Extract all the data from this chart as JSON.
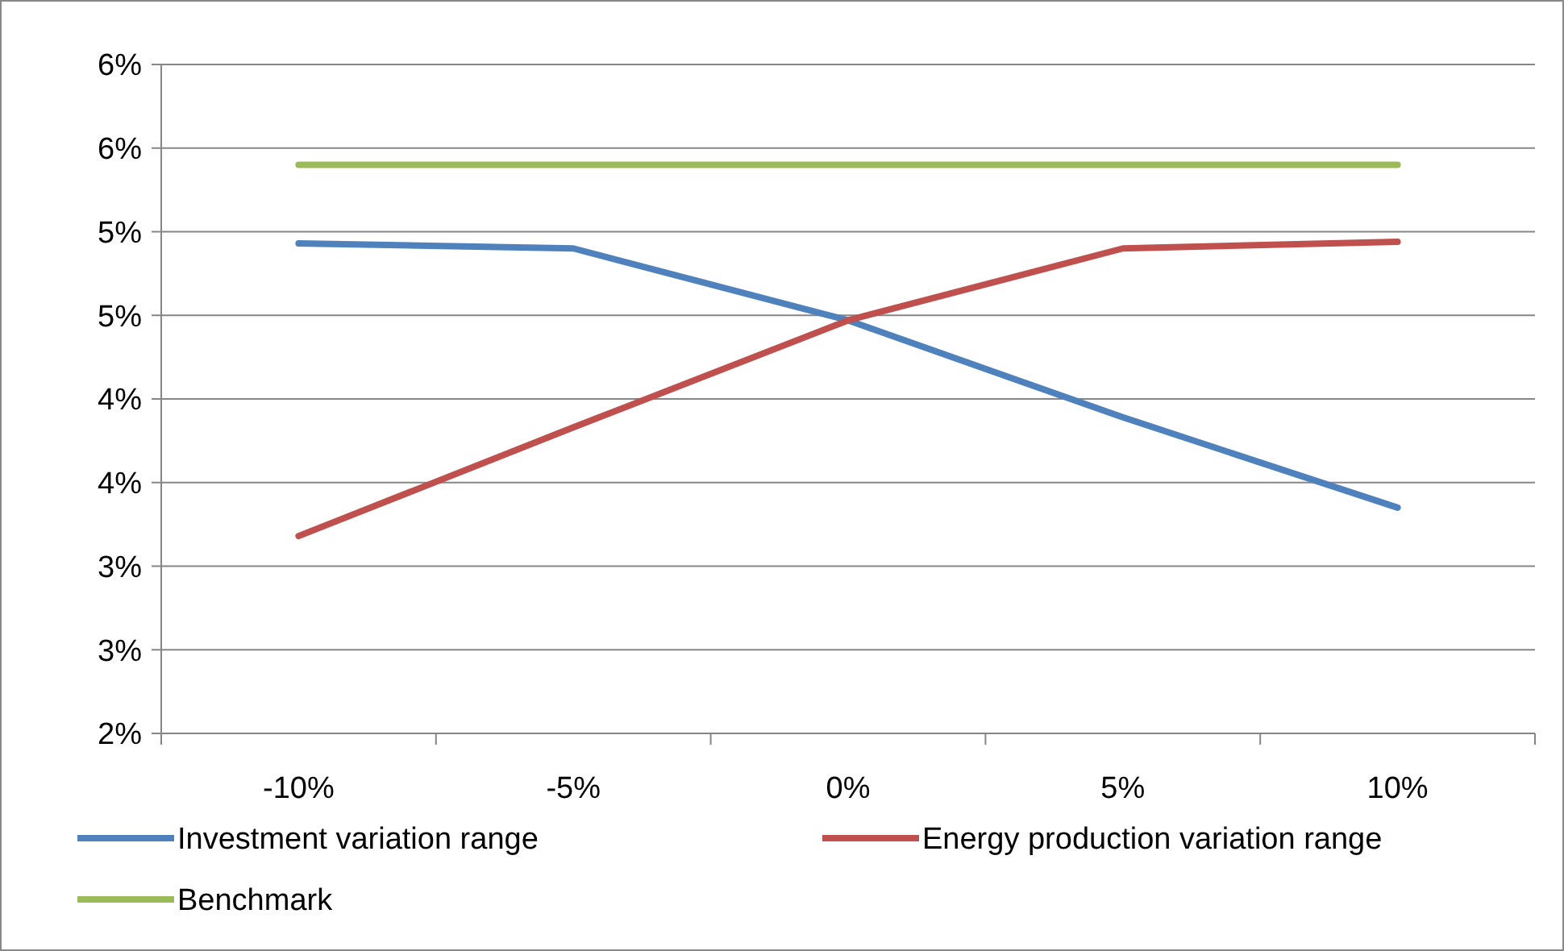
{
  "chart_data": {
    "type": "line",
    "categories": [
      "-10%",
      "-5%",
      "0%",
      "5%",
      "10%"
    ],
    "series": [
      {
        "name": "Investment variation range",
        "color": "#4f81bd",
        "values": [
          4.93,
          4.9,
          4.47,
          3.89,
          3.35
        ]
      },
      {
        "name": "Energy production variation range",
        "color": "#c0504d",
        "values": [
          3.18,
          3.83,
          4.47,
          4.9,
          4.94
        ]
      },
      {
        "name": "Benchmark",
        "color": "#9bbb59",
        "values": [
          5.4,
          5.4,
          5.4,
          5.4,
          5.4
        ]
      }
    ],
    "ylim": [
      2,
      6
    ],
    "yticks": [
      {
        "value": 2,
        "label": "2%"
      },
      {
        "value": 2.5,
        "label": "3%"
      },
      {
        "value": 3,
        "label": "3%"
      },
      {
        "value": 3.5,
        "label": "4%"
      },
      {
        "value": 4,
        "label": "4%"
      },
      {
        "value": 4.5,
        "label": "5%"
      },
      {
        "value": 5,
        "label": "5%"
      },
      {
        "value": 5.5,
        "label": "6%"
      },
      {
        "value": 6,
        "label": "6%"
      }
    ],
    "grid": "y",
    "legend": "bottom",
    "marker": "none",
    "line_style": "solid"
  }
}
